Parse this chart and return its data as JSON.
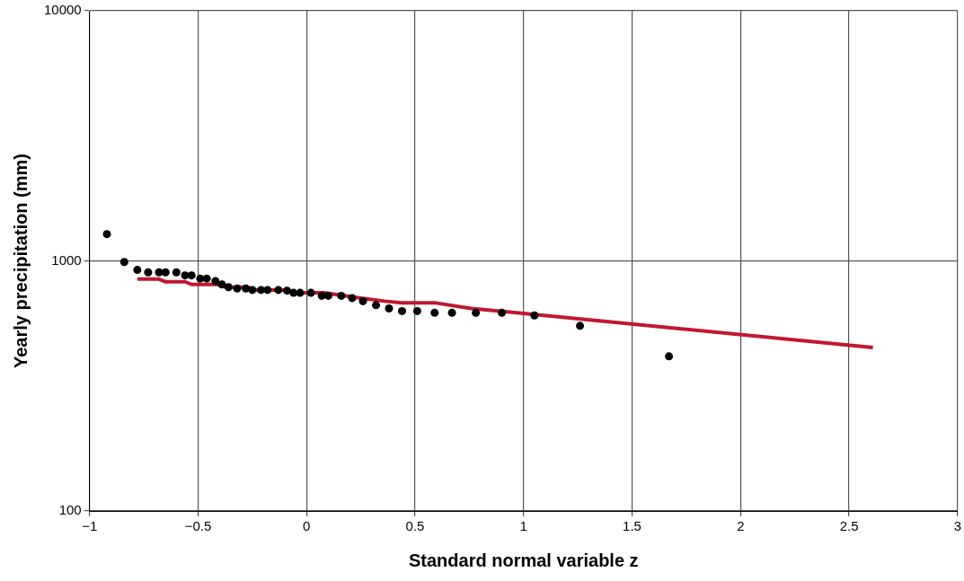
{
  "chart_data": {
    "type": "scatter",
    "xlabel": "Standard normal variable z",
    "ylabel": "Yearly precipitation (mm)",
    "log": "y",
    "grid": true,
    "legend": false,
    "xlim": [
      -1,
      3
    ],
    "xticks": [
      {
        "value": -1,
        "label": "−1"
      },
      {
        "value": -0.5,
        "label": "−0.5"
      },
      0,
      0.5,
      1,
      1.5,
      2,
      2.5,
      3
    ],
    "ylim": [
      100,
      10000
    ],
    "yticks": [
      100,
      1000,
      10000
    ],
    "series": [
      {
        "color": "#000000",
        "marker": "circle",
        "x": [
          -0.92,
          -0.84,
          -0.78,
          -0.73,
          -0.68,
          -0.65,
          -0.6,
          -0.56,
          -0.53,
          -0.49,
          -0.46,
          -0.42,
          -0.39,
          -0.36,
          -0.32,
          -0.28,
          -0.25,
          -0.21,
          -0.18,
          -0.13,
          -0.09,
          -0.06,
          -0.03,
          0.02,
          0.07,
          0.1,
          0.16,
          0.21,
          0.26,
          0.32,
          0.38,
          0.44,
          0.51,
          0.59,
          0.67,
          0.78,
          0.9,
          1.05,
          1.26,
          1.67
        ],
        "values": [
          1280,
          990,
          920,
          900,
          900,
          900,
          900,
          875,
          875,
          850,
          850,
          830,
          805,
          785,
          775,
          775,
          765,
          765,
          765,
          765,
          760,
          745,
          745,
          745,
          725,
          725,
          725,
          710,
          690,
          665,
          645,
          630,
          630,
          620,
          620,
          620,
          620,
          605,
          550,
          415
        ]
      },
      {
        "type": "line",
        "color": "#c0182f",
        "marker": "none",
        "line_style": "solid",
        "x": [
          -0.78,
          -0.68,
          -0.65,
          -0.56,
          -0.53,
          -0.41,
          -0.37,
          -0.27,
          -0.23,
          -0.09,
          -0.05,
          0.08,
          0.25,
          0.36,
          0.44,
          0.59,
          0.76,
          1.01,
          2.61
        ],
        "values": [
          845,
          845,
          825,
          825,
          805,
          805,
          785,
          785,
          765,
          765,
          745,
          745,
          710,
          690,
          680,
          680,
          645,
          615,
          450
        ]
      }
    ]
  }
}
